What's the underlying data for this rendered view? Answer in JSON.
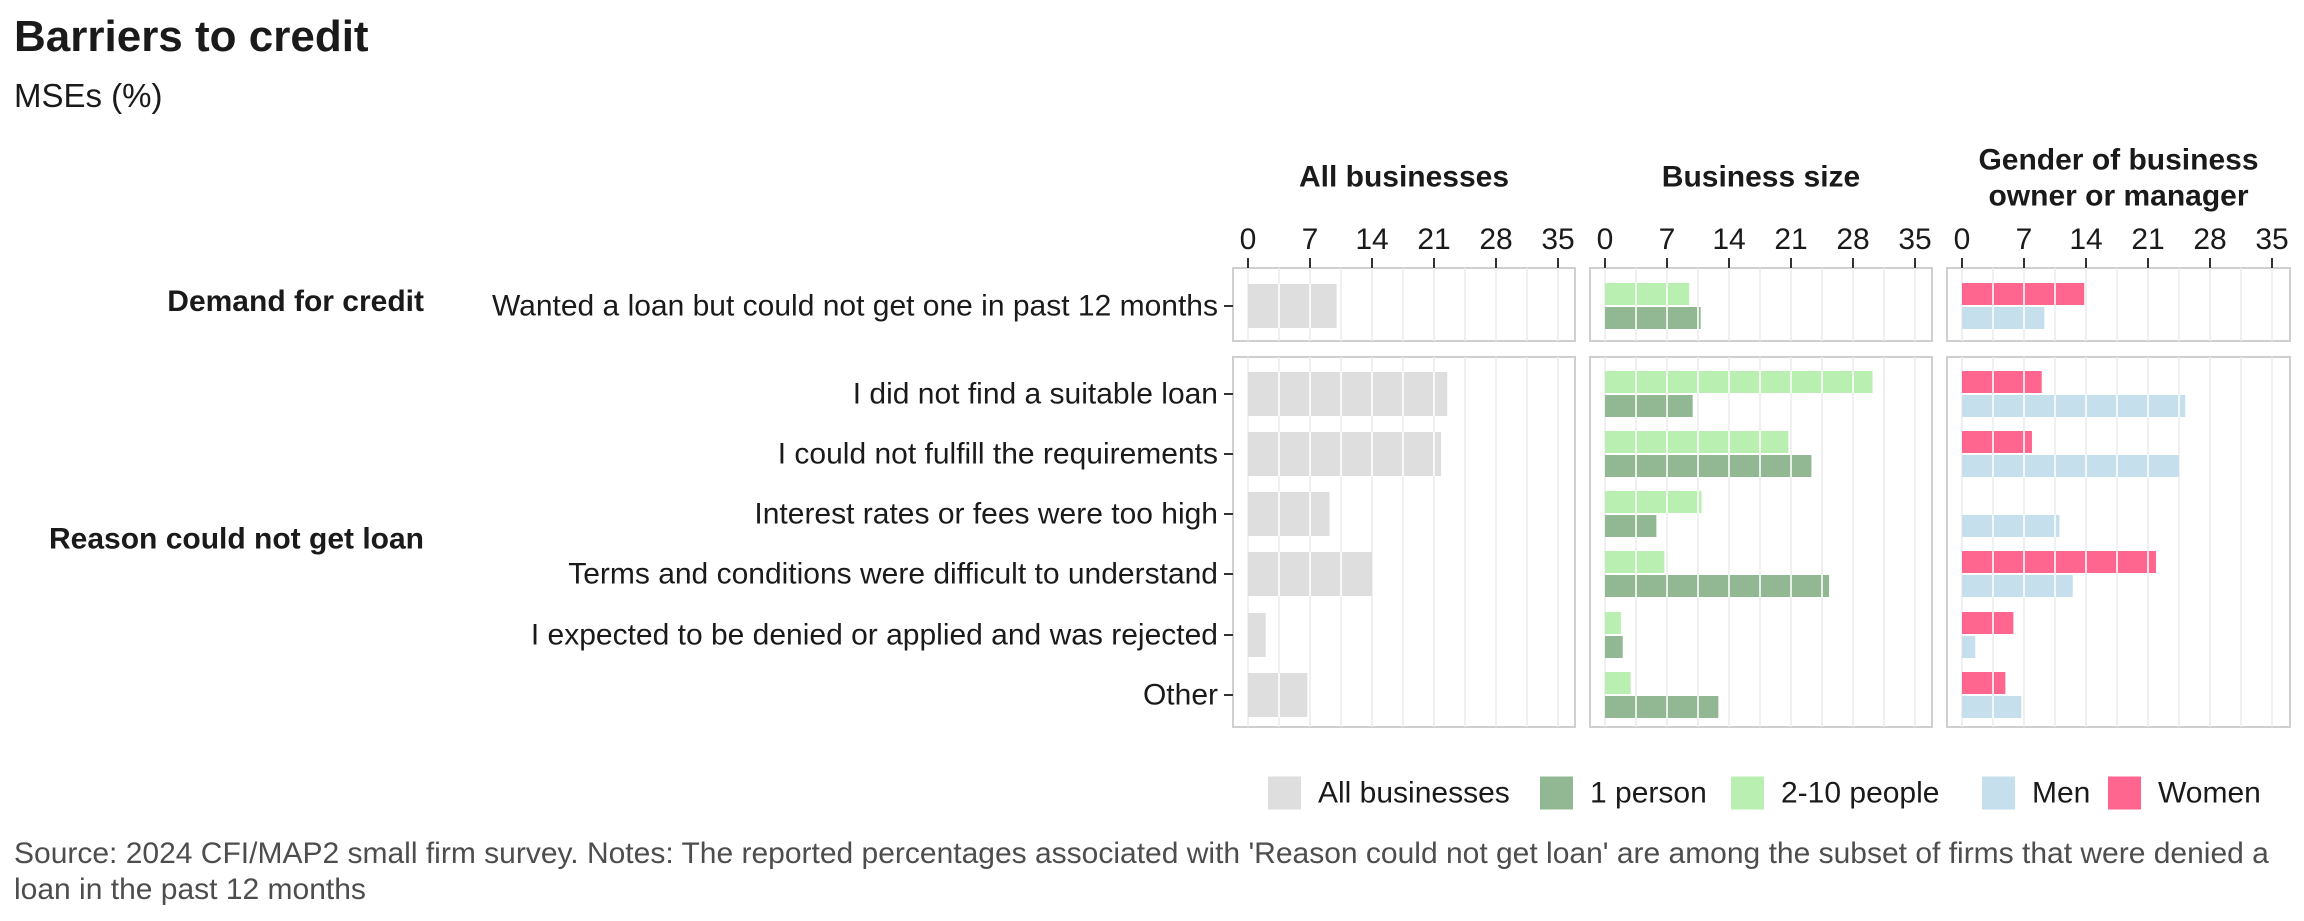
{
  "title": "Barriers to credit",
  "subtitle": "MSEs (%)",
  "source": "Source: 2024 CFI/MAP2 small firm survey. Notes: The reported percentages associated with 'Reason could not get loan' are among the subset of firms that were denied a loan in the past 12 months",
  "chart_data": {
    "type": "bar",
    "orientation": "horizontal",
    "xlim": [
      0,
      35
    ],
    "xticks": [
      "0",
      "7",
      "14",
      "21",
      "28",
      "35"
    ],
    "panels": [
      {
        "id": "all",
        "title_lines": [
          "All businesses"
        ]
      },
      {
        "id": "size",
        "title_lines": [
          "Business size"
        ]
      },
      {
        "id": "gender",
        "title_lines": [
          "Gender of business",
          "owner or manager"
        ]
      }
    ],
    "groups": [
      {
        "label": "Demand for credit",
        "rows": [
          "Wanted a loan but could not get one in past 12 months"
        ]
      },
      {
        "label": "Reason could not get loan",
        "rows": [
          "I did not find a suitable loan",
          "I could not fulfill the requirements",
          "Interest rates or fees were too high",
          "Terms and conditions were difficult to understand",
          "I expected to be denied or applied and was rejected",
          "Other"
        ]
      }
    ],
    "series": [
      {
        "name": "All businesses",
        "panel": "all",
        "color": "#dedede",
        "values": [
          10,
          22.5,
          21.8,
          9.2,
          14,
          2,
          6.7
        ]
      },
      {
        "name": "2-10 people",
        "panel": "size",
        "color": "#b9efb1",
        "values": [
          9.5,
          30.2,
          20.7,
          10.9,
          6.7,
          1.8,
          2.9
        ]
      },
      {
        "name": "1 person",
        "panel": "size",
        "color": "#91b893",
        "values": [
          10.8,
          9.9,
          23.3,
          5.8,
          25.3,
          2,
          12.8
        ]
      },
      {
        "name": "Women",
        "panel": "gender",
        "color": "#ff668f",
        "values": [
          13.8,
          9,
          7.9,
          null,
          21.9,
          5.8,
          4.9
        ]
      },
      {
        "name": "Men",
        "panel": "gender",
        "color": "#c6dfed",
        "values": [
          9.3,
          25.2,
          24.5,
          11,
          12.5,
          1.5,
          6.7
        ]
      }
    ],
    "legend": {
      "position": "bottom-right",
      "items": [
        {
          "label": "All businesses",
          "color": "#dedede"
        },
        {
          "label": "1 person",
          "color": "#91b893"
        },
        {
          "label": "2-10 people",
          "color": "#b9efb1"
        },
        {
          "label": "Men",
          "color": "#c6dfed"
        },
        {
          "label": "Women",
          "color": "#ff668f"
        }
      ]
    },
    "grid": true
  }
}
